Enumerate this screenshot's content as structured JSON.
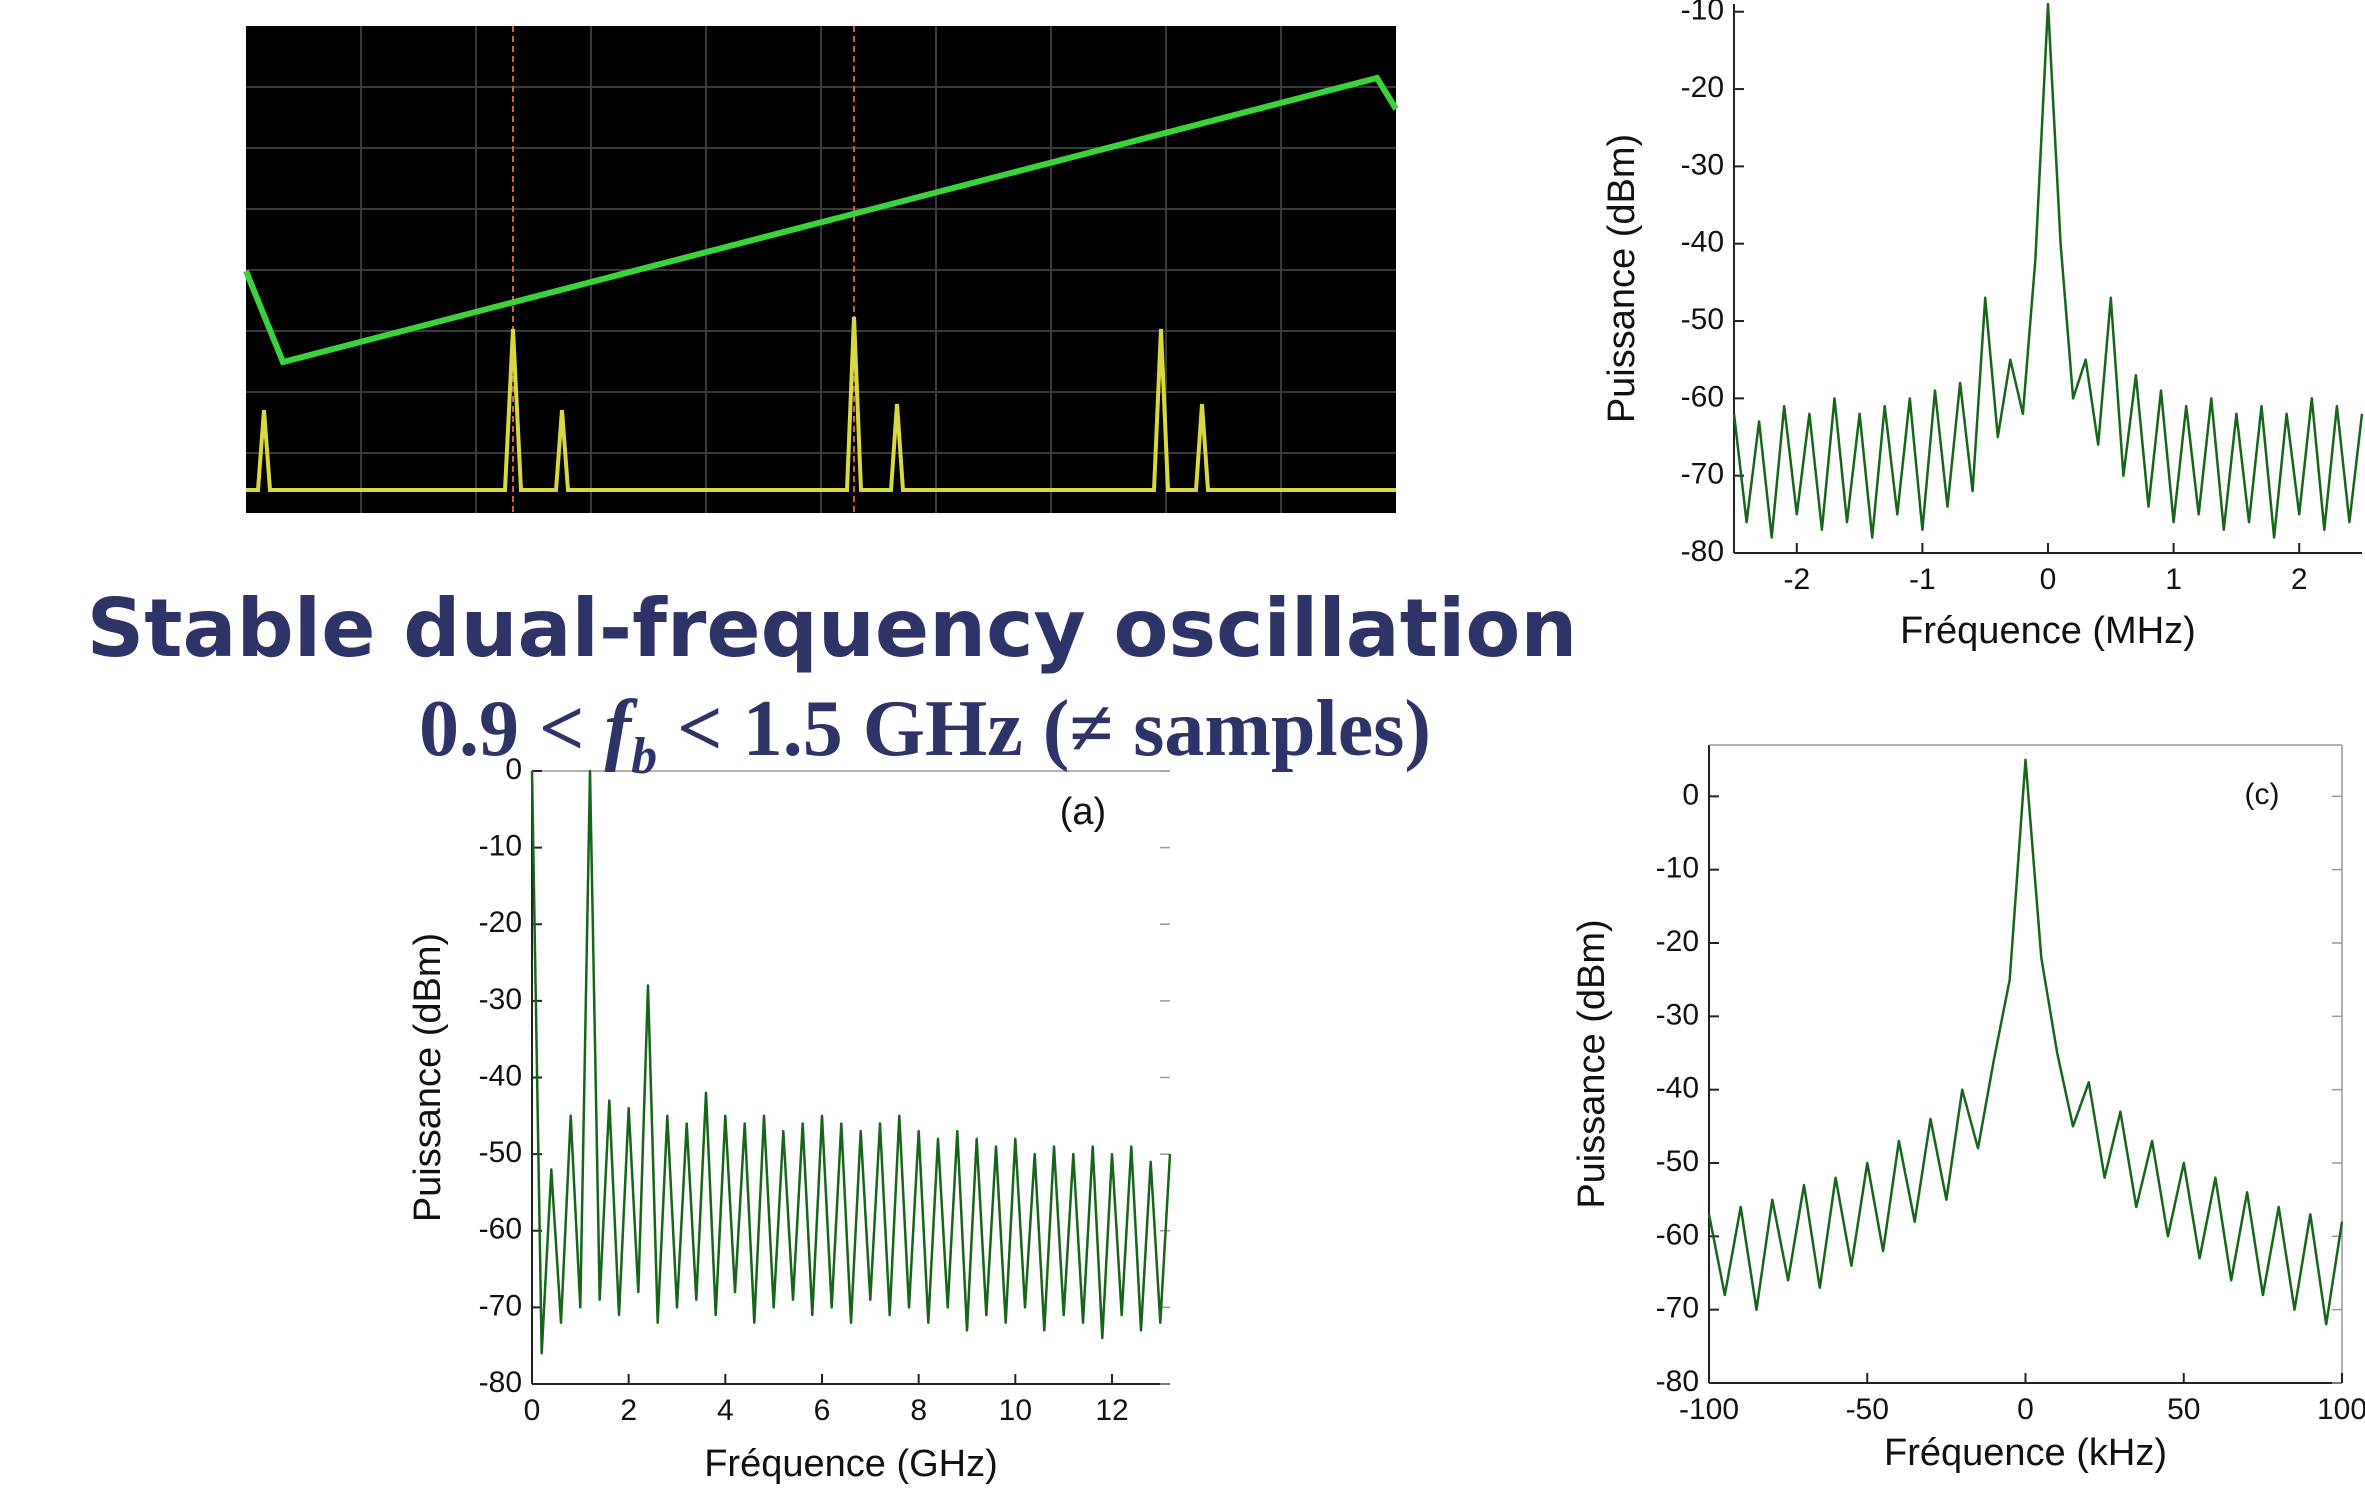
{
  "title": "Stable dual-frequency oscillation",
  "subtitle": [
    "0.9 < ",
    "f",
    "b",
    " < 1.5 GHz (≠ samples)"
  ],
  "chart_data": [
    {
      "type": "line",
      "label": "(a)",
      "x_label": "Fréquence (GHz)",
      "y_label": "Puissance (dBm)",
      "color": "#17651a",
      "xlim": [
        0,
        13.2
      ],
      "xticks": [
        0,
        2,
        4,
        6,
        8,
        10,
        12
      ],
      "ylim": [
        -80,
        0
      ],
      "yticks": [
        -80,
        -70,
        -60,
        -50,
        -40,
        -30,
        -20,
        -10,
        0
      ],
      "x": [
        0,
        0.2,
        0.4,
        0.6,
        0.8,
        1.0,
        1.2,
        1.4,
        1.6,
        1.8,
        2.0,
        2.2,
        2.4,
        2.6,
        2.8,
        3.0,
        3.2,
        3.4,
        3.6,
        3.8,
        4.0,
        4.2,
        4.4,
        4.6,
        4.8,
        5.0,
        5.2,
        5.4,
        5.6,
        5.8,
        6.0,
        6.2,
        6.4,
        6.6,
        6.8,
        7.0,
        7.2,
        7.4,
        7.6,
        7.8,
        8.0,
        8.2,
        8.4,
        8.6,
        8.8,
        9.0,
        9.2,
        9.4,
        9.6,
        9.8,
        10.0,
        10.2,
        10.4,
        10.6,
        10.8,
        11.0,
        11.2,
        11.4,
        11.6,
        11.8,
        12.0,
        12.2,
        12.4,
        12.6,
        12.8,
        13.0,
        13.2
      ],
      "values": [
        0,
        -76,
        -52,
        -72,
        -45,
        -70,
        0,
        -69,
        -43,
        -71,
        -44,
        -68,
        -28,
        -72,
        -45,
        -70,
        -46,
        -69,
        -42,
        -71,
        -45,
        -68,
        -46,
        -72,
        -45,
        -70,
        -47,
        -69,
        -46,
        -71,
        -45,
        -70,
        -46,
        -72,
        -47,
        -69,
        -46,
        -71,
        -45,
        -70,
        -47,
        -72,
        -48,
        -70,
        -47,
        -73,
        -48,
        -71,
        -49,
        -72,
        -48,
        -70,
        -50,
        -73,
        -49,
        -71,
        -50,
        -72,
        -49,
        -74,
        -50,
        -71,
        -49,
        -73,
        -51,
        -72,
        -50
      ]
    },
    {
      "type": "line",
      "x_label": "Fréquence (MHz)",
      "y_label": "Puissance (dBm)",
      "color": "#17651a",
      "xlim": [
        -2.5,
        2.5
      ],
      "xticks": [
        -2,
        -1,
        0,
        1,
        2
      ],
      "ylim": [
        -80,
        -9
      ],
      "yticks": [
        -80,
        -70,
        -60,
        -50,
        -40,
        -30,
        -20,
        -10
      ],
      "x": [
        -2.5,
        -2.4,
        -2.3,
        -2.2,
        -2.1,
        -2.0,
        -1.9,
        -1.8,
        -1.7,
        -1.6,
        -1.5,
        -1.4,
        -1.3,
        -1.2,
        -1.1,
        -1.0,
        -0.9,
        -0.8,
        -0.7,
        -0.6,
        -0.5,
        -0.4,
        -0.3,
        -0.2,
        -0.1,
        0,
        0.1,
        0.2,
        0.3,
        0.4,
        0.5,
        0.6,
        0.7,
        0.8,
        0.9,
        1.0,
        1.1,
        1.2,
        1.3,
        1.4,
        1.5,
        1.6,
        1.7,
        1.8,
        1.9,
        2.0,
        2.1,
        2.2,
        2.3,
        2.4,
        2.5
      ],
      "values": [
        -62,
        -76,
        -63,
        -78,
        -61,
        -75,
        -62,
        -77,
        -60,
        -76,
        -62,
        -78,
        -61,
        -75,
        -60,
        -77,
        -59,
        -74,
        -58,
        -72,
        -47,
        -65,
        -55,
        -62,
        -42,
        -9,
        -40,
        -60,
        -55,
        -66,
        -47,
        -70,
        -57,
        -74,
        -59,
        -76,
        -61,
        -75,
        -60,
        -77,
        -62,
        -76,
        -61,
        -78,
        -62,
        -75,
        -60,
        -77,
        -61,
        -76,
        -62
      ]
    },
    {
      "type": "line",
      "label": "(c)",
      "x_label": "Fréquence (kHz)",
      "y_label": "Puissance (dBm)",
      "color": "#17651a",
      "xlim": [
        -100,
        100
      ],
      "xticks": [
        -100,
        -50,
        0,
        50,
        100
      ],
      "ylim": [
        -80,
        7
      ],
      "yticks": [
        -80,
        -70,
        -60,
        -50,
        -40,
        -30,
        -20,
        -10,
        0
      ],
      "x": [
        -100,
        -95,
        -90,
        -85,
        -80,
        -75,
        -70,
        -65,
        -60,
        -55,
        -50,
        -45,
        -40,
        -35,
        -30,
        -25,
        -20,
        -15,
        -10,
        -5,
        0,
        5,
        10,
        15,
        20,
        25,
        30,
        35,
        40,
        45,
        50,
        55,
        60,
        65,
        70,
        75,
        80,
        85,
        90,
        95,
        100
      ],
      "values": [
        -57,
        -68,
        -56,
        -70,
        -55,
        -66,
        -53,
        -67,
        -52,
        -64,
        -50,
        -62,
        -47,
        -58,
        -44,
        -55,
        -40,
        -48,
        -36,
        -25,
        5,
        -22,
        -35,
        -45,
        -39,
        -52,
        -43,
        -56,
        -47,
        -60,
        -50,
        -63,
        -52,
        -66,
        -54,
        -68,
        -56,
        -70,
        -57,
        -72,
        -58
      ]
    }
  ]
}
